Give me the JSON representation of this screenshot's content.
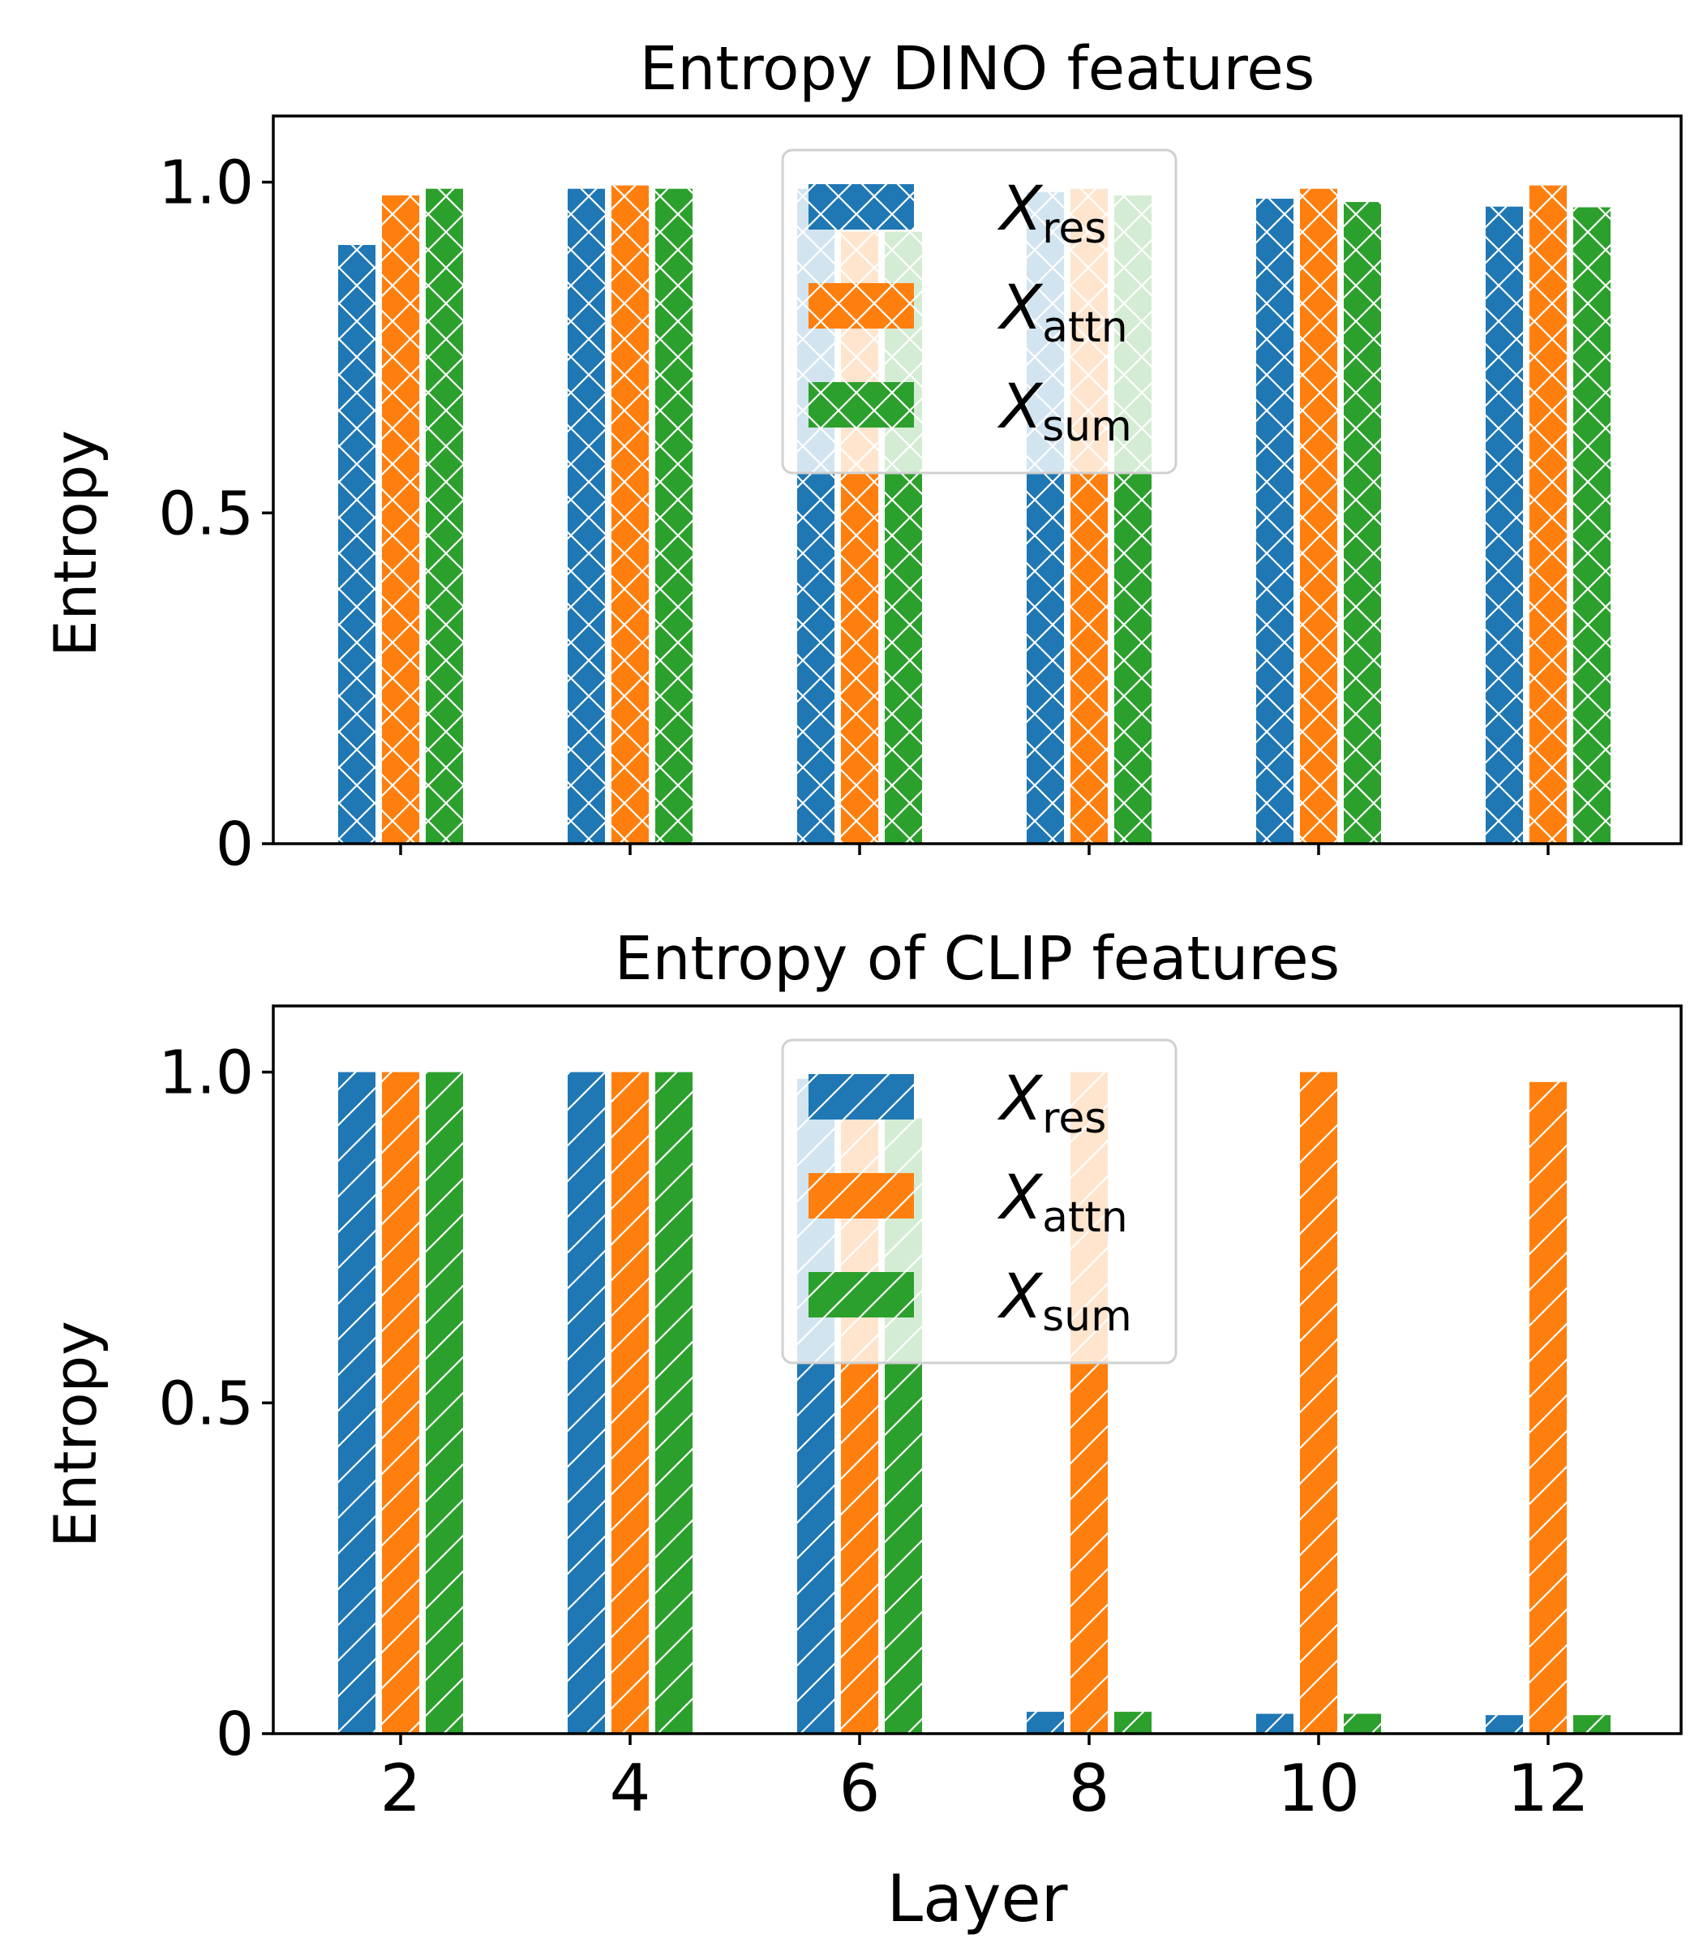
{
  "figure": {
    "xlabel": "Layer"
  },
  "chart_data": [
    {
      "type": "bar",
      "title": "Entropy DINO features",
      "xlabel": "",
      "ylabel": "Entropy",
      "ylim": [
        0,
        1.1
      ],
      "yticks": [
        "0",
        "0.5",
        "1.0"
      ],
      "ytick_values": [
        0,
        0.5,
        1.0
      ],
      "categories": [
        "2",
        "4",
        "6",
        "8",
        "10",
        "12"
      ],
      "hatch": "x",
      "legend_position": "upper center",
      "series": [
        {
          "name": "X",
          "subscript": "res",
          "color": "#1f77b4",
          "values": [
            0.905,
            0.99,
            0.99,
            0.985,
            0.975,
            0.963
          ]
        },
        {
          "name": "X",
          "subscript": "attn",
          "color": "#ff7f0e",
          "values": [
            0.98,
            0.995,
            0.925,
            0.99,
            0.99,
            0.995
          ]
        },
        {
          "name": "X",
          "subscript": "sum",
          "color": "#2ca02c",
          "values": [
            0.99,
            0.99,
            0.925,
            0.98,
            0.97,
            0.962
          ]
        }
      ]
    },
    {
      "type": "bar",
      "title": "Entropy of CLIP features",
      "xlabel": "Layer",
      "ylabel": "Entropy",
      "ylim": [
        0,
        1.1
      ],
      "yticks": [
        "0",
        "0.5",
        "1.0"
      ],
      "ytick_values": [
        0,
        0.5,
        1.0
      ],
      "categories": [
        "2",
        "4",
        "6",
        "8",
        "10",
        "12"
      ],
      "hatch": "/",
      "legend_position": "upper center",
      "series": [
        {
          "name": "X",
          "subscript": "res",
          "color": "#1f77b4",
          "values": [
            1.0,
            1.0,
            0.99,
            0.033,
            0.03,
            0.028
          ]
        },
        {
          "name": "X",
          "subscript": "attn",
          "color": "#ff7f0e",
          "values": [
            1.0,
            1.0,
            0.93,
            1.0,
            1.0,
            0.985
          ]
        },
        {
          "name": "X",
          "subscript": "sum",
          "color": "#2ca02c",
          "values": [
            1.0,
            1.0,
            0.93,
            0.033,
            0.03,
            0.028
          ]
        }
      ]
    }
  ]
}
